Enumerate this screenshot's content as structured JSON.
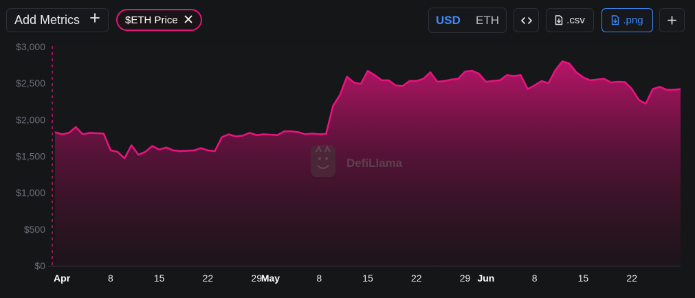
{
  "toolbar": {
    "add_metrics_label": "Add Metrics",
    "add_metrics_icon": "plus-icon",
    "metric_chip_label": "$ETH Price",
    "metric_chip_remove_icon": "close-icon",
    "unit_options": [
      "USD",
      "ETH"
    ],
    "unit_selected": "USD",
    "embed_icon": "code-icon",
    "csv_label": ".csv",
    "csv_icon": "file-download-icon",
    "png_label": ".png",
    "png_icon": "image-download-icon",
    "more_icon": "plus-icon"
  },
  "watermark": {
    "text": "DefiLlama",
    "icon": "llama-logo-icon"
  },
  "colors": {
    "accent": "#e8137f",
    "selected_unit": "#3d8bfd",
    "background": "#151618"
  },
  "chart_data": {
    "type": "area",
    "title": "",
    "xlabel": "",
    "ylabel": "",
    "ylim": [
      0,
      3000
    ],
    "y_ticks": [
      0,
      500,
      1000,
      1500,
      2000,
      2500,
      3000
    ],
    "y_tick_labels": [
      "$0",
      "$500",
      "$1,000",
      "$1,500",
      "$2,000",
      "$2,500",
      "$3,000"
    ],
    "grid": false,
    "x_tick_labels": [
      {
        "date": "2024-04-01",
        "label": "Apr",
        "month": true
      },
      {
        "date": "2024-04-08",
        "label": "8",
        "month": false
      },
      {
        "date": "2024-04-15",
        "label": "15",
        "month": false
      },
      {
        "date": "2024-04-22",
        "label": "22",
        "month": false
      },
      {
        "date": "2024-04-29",
        "label": "29",
        "month": false
      },
      {
        "date": "2024-05-01",
        "label": "May",
        "month": true
      },
      {
        "date": "2024-05-08",
        "label": "8",
        "month": false
      },
      {
        "date": "2024-05-15",
        "label": "15",
        "month": false
      },
      {
        "date": "2024-05-22",
        "label": "22",
        "month": false
      },
      {
        "date": "2024-05-29",
        "label": "29",
        "month": false
      },
      {
        "date": "2024-06-01",
        "label": "Jun",
        "month": true
      },
      {
        "date": "2024-06-08",
        "label": "8",
        "month": false
      },
      {
        "date": "2024-06-15",
        "label": "15",
        "month": false
      },
      {
        "date": "2024-06-22",
        "label": "22",
        "month": false
      }
    ],
    "series": [
      {
        "color": "#e8137f",
        "points": [
          [
            "2024-03-31",
            1830
          ],
          [
            "2024-04-01",
            1800
          ],
          [
            "2024-04-02",
            1820
          ],
          [
            "2024-04-03",
            1900
          ],
          [
            "2024-04-04",
            1800
          ],
          [
            "2024-04-05",
            1820
          ],
          [
            "2024-04-06",
            1815
          ],
          [
            "2024-04-07",
            1810
          ],
          [
            "2024-04-08",
            1580
          ],
          [
            "2024-04-09",
            1560
          ],
          [
            "2024-04-10",
            1470
          ],
          [
            "2024-04-11",
            1650
          ],
          [
            "2024-04-12",
            1520
          ],
          [
            "2024-04-13",
            1560
          ],
          [
            "2024-04-14",
            1640
          ],
          [
            "2024-04-15",
            1590
          ],
          [
            "2024-04-16",
            1620
          ],
          [
            "2024-04-17",
            1580
          ],
          [
            "2024-04-18",
            1570
          ],
          [
            "2024-04-19",
            1575
          ],
          [
            "2024-04-20",
            1580
          ],
          [
            "2024-04-21",
            1610
          ],
          [
            "2024-04-22",
            1580
          ],
          [
            "2024-04-23",
            1570
          ],
          [
            "2024-04-24",
            1760
          ],
          [
            "2024-04-25",
            1800
          ],
          [
            "2024-04-26",
            1770
          ],
          [
            "2024-04-27",
            1780
          ],
          [
            "2024-04-28",
            1820
          ],
          [
            "2024-04-29",
            1790
          ],
          [
            "2024-04-30",
            1800
          ],
          [
            "2024-05-01",
            1795
          ],
          [
            "2024-05-02",
            1790
          ],
          [
            "2024-05-03",
            1840
          ],
          [
            "2024-05-04",
            1840
          ],
          [
            "2024-05-05",
            1830
          ],
          [
            "2024-05-06",
            1800
          ],
          [
            "2024-05-07",
            1810
          ],
          [
            "2024-05-08",
            1800
          ],
          [
            "2024-05-09",
            1805
          ],
          [
            "2024-05-10",
            2190
          ],
          [
            "2024-05-11",
            2340
          ],
          [
            "2024-05-12",
            2590
          ],
          [
            "2024-05-13",
            2510
          ],
          [
            "2024-05-14",
            2490
          ],
          [
            "2024-05-15",
            2670
          ],
          [
            "2024-05-16",
            2610
          ],
          [
            "2024-05-17",
            2540
          ],
          [
            "2024-05-18",
            2540
          ],
          [
            "2024-05-19",
            2470
          ],
          [
            "2024-05-20",
            2460
          ],
          [
            "2024-05-21",
            2530
          ],
          [
            "2024-05-22",
            2530
          ],
          [
            "2024-05-23",
            2560
          ],
          [
            "2024-05-24",
            2650
          ],
          [
            "2024-05-25",
            2520
          ],
          [
            "2024-05-26",
            2530
          ],
          [
            "2024-05-27",
            2550
          ],
          [
            "2024-05-28",
            2560
          ],
          [
            "2024-05-29",
            2660
          ],
          [
            "2024-05-30",
            2670
          ],
          [
            "2024-05-31",
            2630
          ],
          [
            "2024-06-01",
            2520
          ],
          [
            "2024-06-02",
            2530
          ],
          [
            "2024-06-03",
            2540
          ],
          [
            "2024-06-04",
            2610
          ],
          [
            "2024-06-05",
            2600
          ],
          [
            "2024-06-06",
            2610
          ],
          [
            "2024-06-07",
            2420
          ],
          [
            "2024-06-08",
            2470
          ],
          [
            "2024-06-09",
            2530
          ],
          [
            "2024-06-10",
            2500
          ],
          [
            "2024-06-11",
            2680
          ],
          [
            "2024-06-12",
            2800
          ],
          [
            "2024-06-13",
            2770
          ],
          [
            "2024-06-14",
            2650
          ],
          [
            "2024-06-15",
            2580
          ],
          [
            "2024-06-16",
            2540
          ],
          [
            "2024-06-17",
            2550
          ],
          [
            "2024-06-18",
            2560
          ],
          [
            "2024-06-19",
            2510
          ],
          [
            "2024-06-20",
            2520
          ],
          [
            "2024-06-21",
            2515
          ],
          [
            "2024-06-22",
            2420
          ],
          [
            "2024-06-23",
            2270
          ],
          [
            "2024-06-24",
            2220
          ],
          [
            "2024-06-25",
            2420
          ],
          [
            "2024-06-26",
            2450
          ],
          [
            "2024-06-27",
            2410
          ],
          [
            "2024-06-28",
            2410
          ],
          [
            "2024-06-29",
            2420
          ]
        ]
      }
    ]
  }
}
